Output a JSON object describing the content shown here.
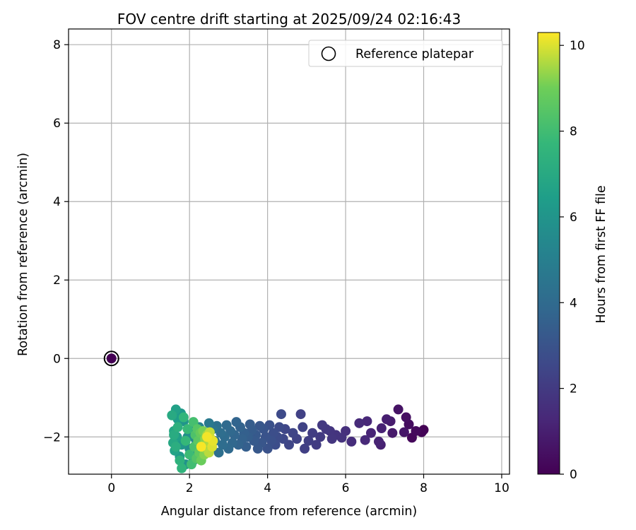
{
  "chart_data": {
    "type": "scatter",
    "title": "FOV centre drift starting at 2025/09/24 02:16:43",
    "xlabel": "Angular distance from reference (arcmin)",
    "ylabel": "Rotation from reference (arcmin)",
    "xlim": [
      -1.1,
      10.2
    ],
    "ylim": [
      -2.95,
      8.4
    ],
    "xticks": [
      0,
      2,
      4,
      6,
      8,
      10
    ],
    "yticks": [
      -2,
      0,
      2,
      4,
      6,
      8
    ],
    "xtick_labels": [
      "0",
      "2",
      "4",
      "6",
      "8",
      "10"
    ],
    "ytick_labels": [
      "−2",
      "0",
      "2",
      "4",
      "6",
      "8"
    ],
    "grid": true,
    "legend": {
      "location": "top-right",
      "entries": [
        "Reference platepar"
      ]
    },
    "colorbar": {
      "label": "Hours from first FF file",
      "colormap": "viridis",
      "range": [
        0,
        10.3
      ],
      "ticks": [
        0,
        2,
        4,
        6,
        8,
        10
      ],
      "tick_labels": [
        "0",
        "2",
        "4",
        "6",
        "8",
        "10"
      ]
    },
    "reference_point": {
      "x": 0,
      "y": 0,
      "hours": 0
    },
    "points": [
      [
        8.0,
        -1.82,
        0.0
      ],
      [
        7.95,
        -1.88,
        0.1
      ],
      [
        7.7,
        -2.02,
        0.2
      ],
      [
        7.8,
        -1.85,
        0.3
      ],
      [
        7.62,
        -1.68,
        0.4
      ],
      [
        7.55,
        -1.5,
        0.5
      ],
      [
        7.35,
        -1.3,
        0.6
      ],
      [
        7.5,
        -1.88,
        0.7
      ],
      [
        7.2,
        -1.9,
        0.8
      ],
      [
        7.15,
        -1.6,
        0.9
      ],
      [
        7.05,
        -1.55,
        1.0
      ],
      [
        6.9,
        -2.2,
        1.05
      ],
      [
        6.92,
        -1.78,
        1.1
      ],
      [
        6.85,
        -2.12,
        1.15
      ],
      [
        6.65,
        -1.9,
        1.2
      ],
      [
        6.55,
        -1.6,
        1.3
      ],
      [
        6.5,
        -2.08,
        1.35
      ],
      [
        6.35,
        -1.65,
        1.4
      ],
      [
        6.15,
        -2.12,
        1.5
      ],
      [
        6.0,
        -1.85,
        1.6
      ],
      [
        5.9,
        -2.02,
        1.7
      ],
      [
        5.75,
        -1.95,
        1.75
      ],
      [
        5.6,
        -1.85,
        1.8
      ],
      [
        5.65,
        -2.05,
        1.85
      ],
      [
        5.5,
        -1.8,
        1.9
      ],
      [
        5.4,
        -1.7,
        1.95
      ],
      [
        5.35,
        -2.0,
        2.0
      ],
      [
        5.25,
        -2.2,
        2.05
      ],
      [
        5.15,
        -1.9,
        2.1
      ],
      [
        5.05,
        -2.1,
        2.15
      ],
      [
        4.95,
        -2.3,
        2.2
      ],
      [
        4.85,
        -1.42,
        2.25
      ],
      [
        4.9,
        -1.75,
        2.3
      ],
      [
        4.75,
        -2.05,
        2.35
      ],
      [
        4.65,
        -1.9,
        2.4
      ],
      [
        4.55,
        -2.2,
        2.45
      ],
      [
        4.45,
        -1.8,
        2.5
      ],
      [
        4.4,
        -2.05,
        2.55
      ],
      [
        4.35,
        -1.42,
        2.6
      ],
      [
        4.3,
        -1.75,
        2.65
      ],
      [
        4.25,
        -2.0,
        2.7
      ],
      [
        4.2,
        -2.2,
        2.75
      ],
      [
        4.15,
        -1.9,
        2.8
      ],
      [
        4.1,
        -2.1,
        2.85
      ],
      [
        4.05,
        -1.7,
        2.9
      ],
      [
        4.0,
        -2.3,
        2.95
      ],
      [
        3.95,
        -2.0,
        3.0
      ],
      [
        3.9,
        -1.8,
        3.05
      ],
      [
        3.85,
        -2.15,
        3.1
      ],
      [
        3.8,
        -1.72,
        3.15
      ],
      [
        3.75,
        -2.3,
        3.2
      ],
      [
        3.7,
        -1.95,
        3.25
      ],
      [
        3.65,
        -2.1,
        3.3
      ],
      [
        3.6,
        -1.82,
        3.35
      ],
      [
        3.55,
        -1.68,
        3.4
      ],
      [
        3.5,
        -2.0,
        3.45
      ],
      [
        3.45,
        -2.25,
        3.5
      ],
      [
        3.4,
        -1.9,
        3.55
      ],
      [
        3.35,
        -2.05,
        3.6
      ],
      [
        3.3,
        -1.75,
        3.65
      ],
      [
        3.25,
        -2.2,
        3.7
      ],
      [
        3.2,
        -1.62,
        3.75
      ],
      [
        3.15,
        -1.95,
        3.8
      ],
      [
        3.1,
        -2.15,
        3.85
      ],
      [
        3.05,
        -1.85,
        3.9
      ],
      [
        3.0,
        -2.3,
        3.95
      ],
      [
        2.95,
        -1.7,
        4.0
      ],
      [
        2.9,
        -2.0,
        4.05
      ],
      [
        2.85,
        -2.2,
        4.1
      ],
      [
        2.8,
        -1.9,
        4.15
      ],
      [
        2.75,
        -2.4,
        4.2
      ],
      [
        2.7,
        -1.72,
        4.3
      ],
      [
        2.65,
        -2.1,
        4.4
      ],
      [
        2.6,
        -1.8,
        4.5
      ],
      [
        2.55,
        -2.3,
        4.6
      ],
      [
        2.5,
        -1.65,
        4.7
      ],
      [
        2.45,
        -2.0,
        4.8
      ],
      [
        2.4,
        -2.2,
        4.9
      ],
      [
        2.35,
        -1.9,
        5.0
      ],
      [
        2.3,
        -2.5,
        5.1
      ],
      [
        2.25,
        -1.75,
        5.2
      ],
      [
        2.2,
        -2.35,
        5.3
      ],
      [
        2.15,
        -2.05,
        5.4
      ],
      [
        2.1,
        -2.6,
        5.5
      ],
      [
        2.05,
        -1.85,
        5.6
      ],
      [
        2.0,
        -2.3,
        5.7
      ],
      [
        1.95,
        -2.0,
        5.8
      ],
      [
        1.9,
        -2.7,
        5.9
      ],
      [
        1.85,
        -1.6,
        6.0
      ],
      [
        1.8,
        -2.2,
        6.1
      ],
      [
        1.78,
        -1.4,
        6.2
      ],
      [
        1.75,
        -2.5,
        6.3
      ],
      [
        1.7,
        -1.55,
        6.4
      ],
      [
        1.68,
        -2.0,
        6.5
      ],
      [
        1.65,
        -1.3,
        6.6
      ],
      [
        1.62,
        -2.35,
        6.7
      ],
      [
        1.6,
        -1.85,
        6.8
      ],
      [
        1.58,
        -2.15,
        6.9
      ],
      [
        1.55,
        -1.45,
        7.0
      ],
      [
        1.6,
        -1.95,
        7.1
      ],
      [
        1.65,
        -2.25,
        7.2
      ],
      [
        1.7,
        -1.75,
        7.3
      ],
      [
        1.75,
        -2.6,
        7.4
      ],
      [
        1.8,
        -2.8,
        7.5
      ],
      [
        1.85,
        -1.5,
        7.6
      ],
      [
        1.9,
        -2.1,
        7.7
      ],
      [
        1.95,
        -1.8,
        7.8
      ],
      [
        2.0,
        -2.45,
        7.9
      ],
      [
        2.05,
        -2.7,
        8.0
      ],
      [
        2.1,
        -1.62,
        8.1
      ],
      [
        2.12,
        -2.25,
        8.2
      ],
      [
        2.15,
        -1.95,
        8.3
      ],
      [
        2.18,
        -2.55,
        8.4
      ],
      [
        2.2,
        -1.8,
        8.5
      ],
      [
        2.22,
        -2.1,
        8.6
      ],
      [
        2.25,
        -2.4,
        8.7
      ],
      [
        2.28,
        -1.9,
        8.8
      ],
      [
        2.3,
        -2.6,
        8.9
      ],
      [
        2.32,
        -2.2,
        9.0
      ],
      [
        2.35,
        -1.85,
        9.1
      ],
      [
        2.38,
        -2.45,
        9.2
      ],
      [
        2.4,
        -2.05,
        9.3
      ],
      [
        2.42,
        -2.3,
        9.4
      ],
      [
        2.45,
        -1.95,
        9.5
      ],
      [
        2.48,
        -2.15,
        9.6
      ],
      [
        2.5,
        -2.4,
        9.7
      ],
      [
        2.52,
        -1.88,
        9.8
      ],
      [
        2.55,
        -2.05,
        9.9
      ],
      [
        2.58,
        -2.25,
        10.0
      ],
      [
        2.6,
        -2.1,
        10.1
      ],
      [
        2.45,
        -2.0,
        10.2
      ],
      [
        2.3,
        -2.25,
        10.25
      ]
    ]
  }
}
